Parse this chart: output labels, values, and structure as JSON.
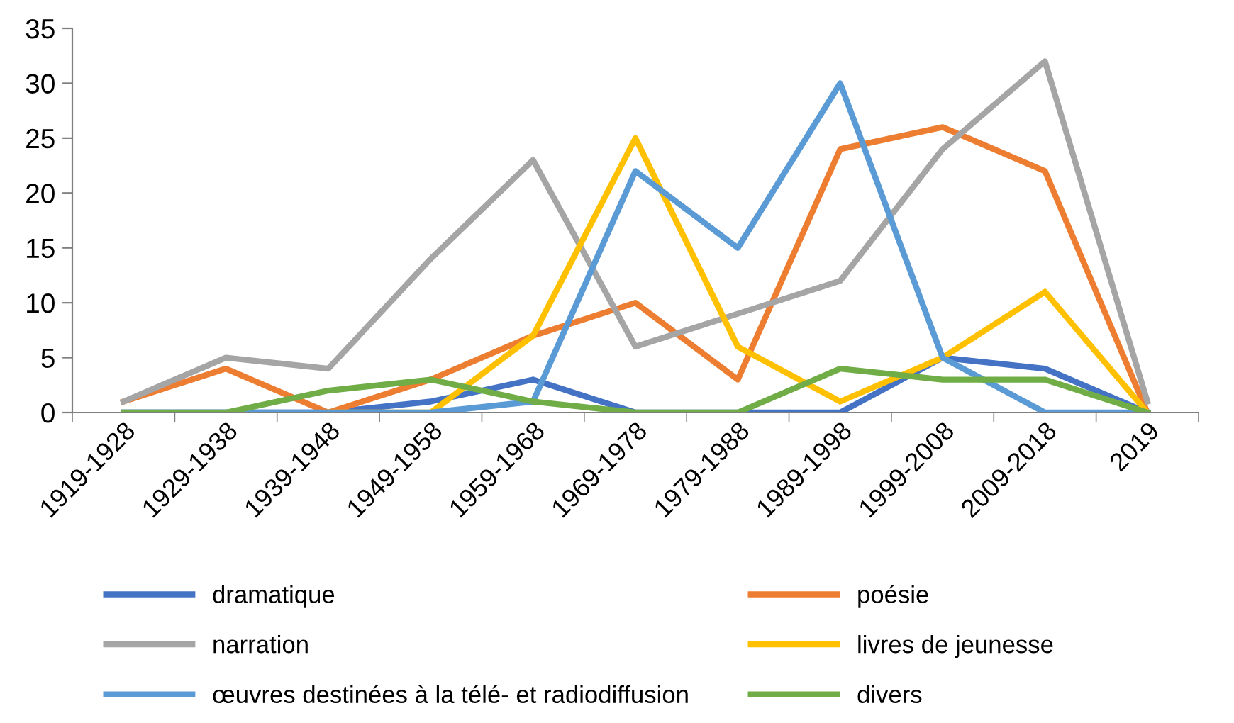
{
  "chart_data": {
    "type": "line",
    "categories": [
      "1919-1928",
      "1929-1938",
      "1939-1948",
      "1949-1958",
      "1959-1968",
      "1969-1978",
      "1979-1988",
      "1989-1998",
      "1999-2008",
      "2009-2018",
      "2019"
    ],
    "series": [
      {
        "name": "dramatique",
        "color": "#4472c4",
        "values": [
          0,
          0,
          0,
          1,
          3,
          0,
          0,
          0,
          5,
          4,
          0
        ]
      },
      {
        "name": "poésie",
        "color": "#ed7d31",
        "values": [
          1,
          4,
          0,
          3,
          7,
          10,
          3,
          24,
          26,
          22,
          0
        ]
      },
      {
        "name": "narration",
        "color": "#a5a5a5",
        "values": [
          1,
          5,
          4,
          14,
          23,
          6,
          9,
          12,
          24,
          32,
          1
        ]
      },
      {
        "name": "livres de jeunesse",
        "color": "#ffc000",
        "values": [
          null,
          null,
          0,
          0,
          7,
          25,
          6,
          1,
          5,
          11,
          0
        ]
      },
      {
        "name": "œuvres destinées à la télé- et radiodiffusion",
        "color": "#5b9bd5",
        "values": [
          0,
          0,
          0,
          0,
          1,
          22,
          15,
          30,
          5,
          0,
          0
        ]
      },
      {
        "name": "divers",
        "color": "#70ad47",
        "values": [
          0,
          0,
          2,
          3,
          1,
          0,
          0,
          4,
          3,
          3,
          0
        ]
      }
    ],
    "ylim": [
      0,
      35
    ],
    "yticks": [
      0,
      5,
      10,
      15,
      20,
      25,
      30,
      35
    ],
    "grid": false,
    "legend": "bottom",
    "marker": "none",
    "line_style": "solid"
  }
}
